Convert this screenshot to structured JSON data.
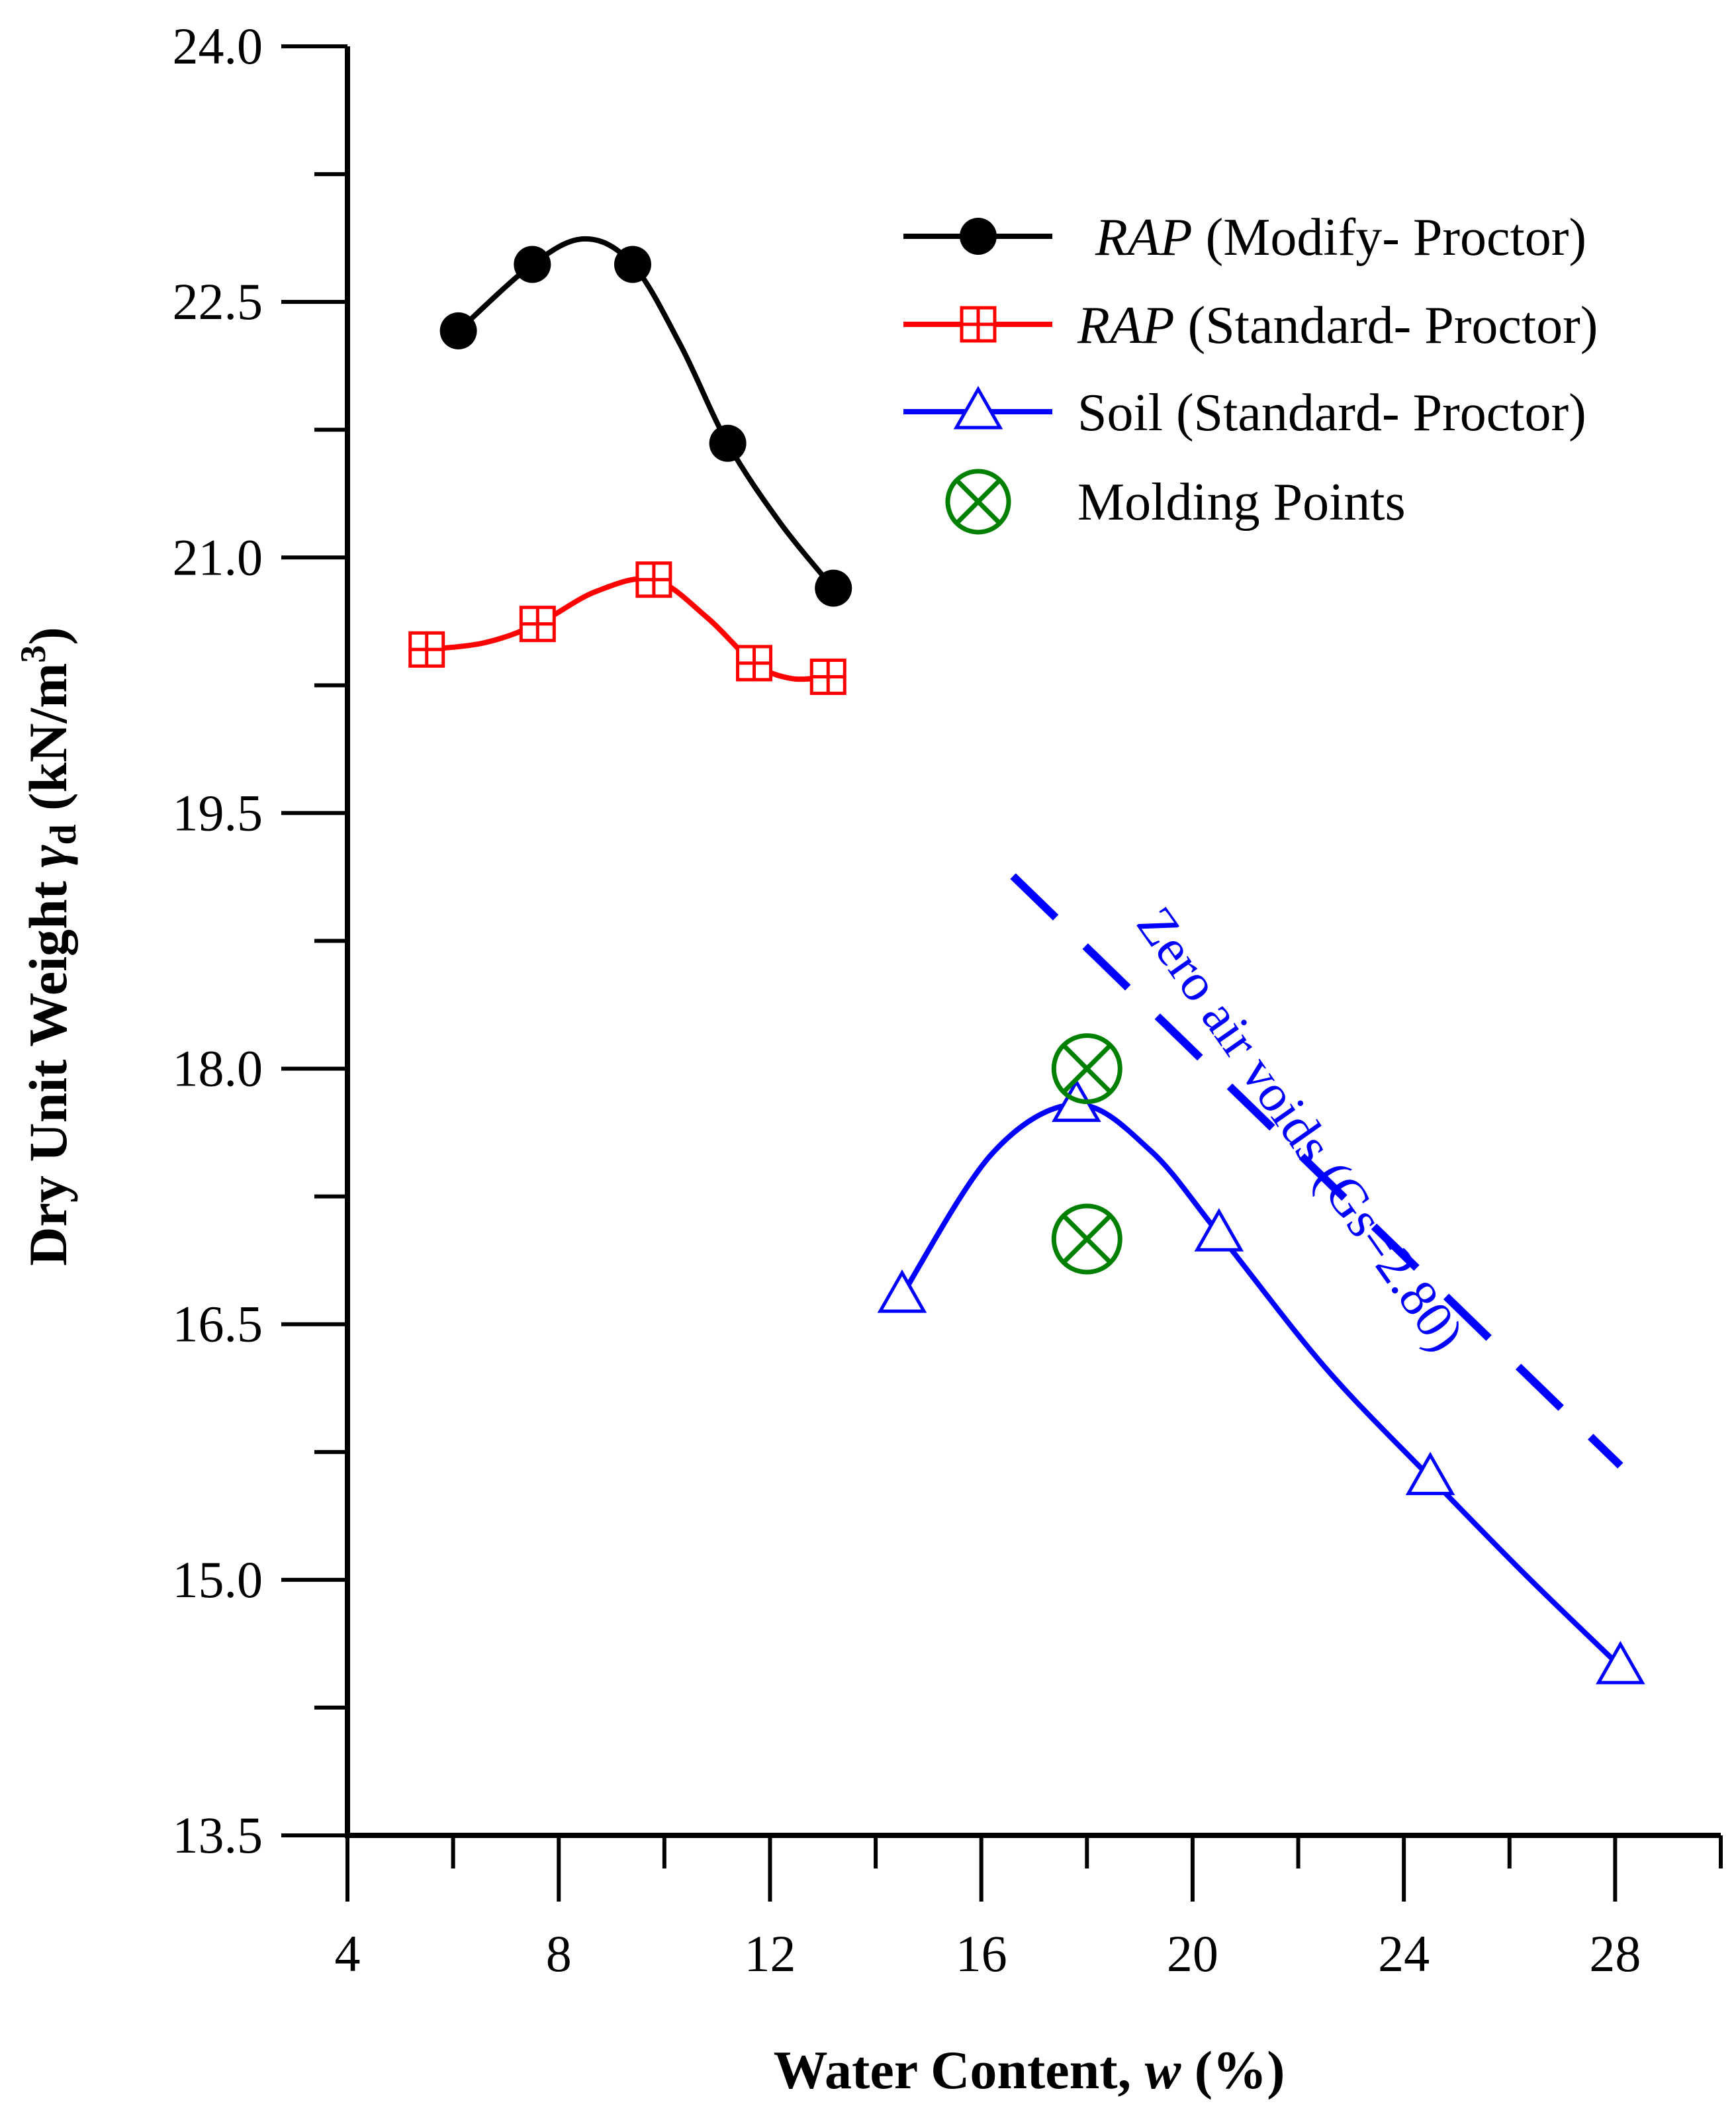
{
  "chart_data": {
    "type": "line",
    "xlabel": {
      "main": "Water Content, ",
      "var": "w",
      "unit": " (%)"
    },
    "ylabel": {
      "main": "Dry Unit Weight ",
      "var": "γ",
      "sub": "d",
      "unit": " (kN/m",
      "sup": "3",
      "close": ")"
    },
    "xlim": [
      4,
      30
    ],
    "ylim": [
      13.5,
      24.0
    ],
    "x_ticks": [
      4,
      8,
      12,
      16,
      20,
      24,
      28
    ],
    "x_tick_labels": [
      "4",
      "8",
      "12",
      "16",
      "20",
      "24",
      "28"
    ],
    "x_minor_ticks": [
      6,
      10,
      14,
      18,
      22,
      26,
      30
    ],
    "y_ticks": [
      13.5,
      15.0,
      16.5,
      18.0,
      19.5,
      21.0,
      22.5,
      24.0
    ],
    "y_tick_labels": [
      "13.5",
      "15.0",
      "16.5",
      "18.0",
      "19.5",
      "21.0",
      "22.5",
      "24.0"
    ],
    "y_minor_ticks": [
      14.25,
      15.75,
      17.25,
      18.75,
      20.25,
      21.75,
      23.25
    ],
    "series": [
      {
        "name": "RAP (Modify- Proctor)",
        "label_italic": "RAP",
        "label_rest": " (Modify- Proctor)",
        "color": "#000000",
        "marker": "filled-circle",
        "x": [
          6.1,
          7.5,
          9.4,
          11.2,
          13.2
        ],
        "y": [
          22.33,
          22.72,
          22.72,
          21.67,
          20.82
        ],
        "curve_x": [
          6.1,
          7.5,
          8.5,
          9.4,
          10.3,
          11.2,
          12.2,
          13.2
        ],
        "curve_y": [
          22.33,
          22.72,
          22.87,
          22.72,
          22.25,
          21.67,
          21.2,
          20.82
        ]
      },
      {
        "name": "RAP (Standard- Proctor)",
        "label_italic": "RAP",
        "label_rest": " (Standard- Proctor)",
        "color": "#ff0000",
        "marker": "boxed-plus",
        "x": [
          5.5,
          7.6,
          9.8,
          11.7,
          13.1
        ],
        "y": [
          20.46,
          20.61,
          20.87,
          20.38,
          20.3
        ],
        "curve_x": [
          5.5,
          6.6,
          7.6,
          8.7,
          9.8,
          10.8,
          11.7,
          12.4,
          13.1
        ],
        "curve_y": [
          20.46,
          20.5,
          20.61,
          20.8,
          20.87,
          20.65,
          20.38,
          20.29,
          20.3
        ]
      },
      {
        "name": "Soil (Standard- Proctor)",
        "label_italic": "",
        "label_rest": "Soil (Standard- Proctor)",
        "color": "#0000ff",
        "marker": "open-triangle",
        "x": [
          14.5,
          17.8,
          20.5,
          24.5,
          28.1
        ],
        "y": [
          16.67,
          17.79,
          17.03,
          15.6,
          14.49
        ],
        "curve_x": [
          14.5,
          16.2,
          17.8,
          19.2,
          20.5,
          22.5,
          24.5,
          26.3,
          28.1
        ],
        "curve_y": [
          16.67,
          17.5,
          17.79,
          17.52,
          17.03,
          16.25,
          15.6,
          15.03,
          14.49
        ]
      },
      {
        "name": "Molding Points",
        "label_italic": "",
        "label_rest": "Molding Points",
        "color": "#008000",
        "marker": "circle-x",
        "x": [
          18.0,
          18.0
        ],
        "y": [
          18.0,
          17.0
        ]
      }
    ],
    "reference_line": {
      "name": "Zero air voids (Gs=2.80)",
      "color": "#0000ff",
      "style": "dashed",
      "x": [
        16.6,
        28.1
      ],
      "y": [
        19.13,
        15.67
      ]
    }
  }
}
